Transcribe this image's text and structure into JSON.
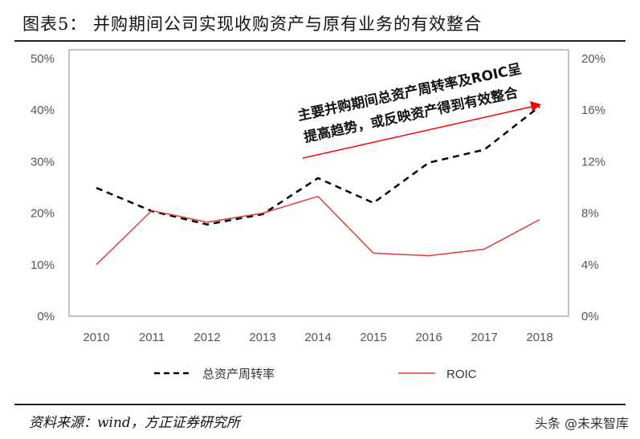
{
  "title": "图表5：  并购期间公司实现收购资产与原有业务的有效整合",
  "source": "资料来源：wind，方正证券研究所",
  "watermark": "头条 @未来智库",
  "chart_data": {
    "type": "line",
    "categories": [
      "2010",
      "2011",
      "2012",
      "2013",
      "2014",
      "2015",
      "2016",
      "2017",
      "2018"
    ],
    "y_left": {
      "ylim": [
        0,
        50
      ],
      "ticks": [
        "0%",
        "10%",
        "20%",
        "30%",
        "40%",
        "50%"
      ]
    },
    "y_right": {
      "ylim": [
        0,
        20
      ],
      "ticks": [
        "0%",
        "4%",
        "8%",
        "12%",
        "16%",
        "20%"
      ]
    },
    "series": [
      {
        "name": "总资产周转率",
        "axis": "left",
        "style": "dashed",
        "color": "#000000",
        "values": [
          24.9,
          20.4,
          17.8,
          19.8,
          26.8,
          22.0,
          29.8,
          32.3,
          40.7
        ]
      },
      {
        "name": "ROIC",
        "axis": "right",
        "style": "solid",
        "color": "#e03a3a",
        "values": [
          4.0,
          8.2,
          7.3,
          8.0,
          9.3,
          4.9,
          4.7,
          5.2,
          7.5
        ]
      }
    ],
    "annotation": {
      "lines": [
        "主要并购期间总资产周转率及ROIC呈",
        "提高趋势，或反映资产得到有效整合"
      ],
      "arrow_color": "#ff0000"
    },
    "legend": "bottom",
    "grid": false
  }
}
